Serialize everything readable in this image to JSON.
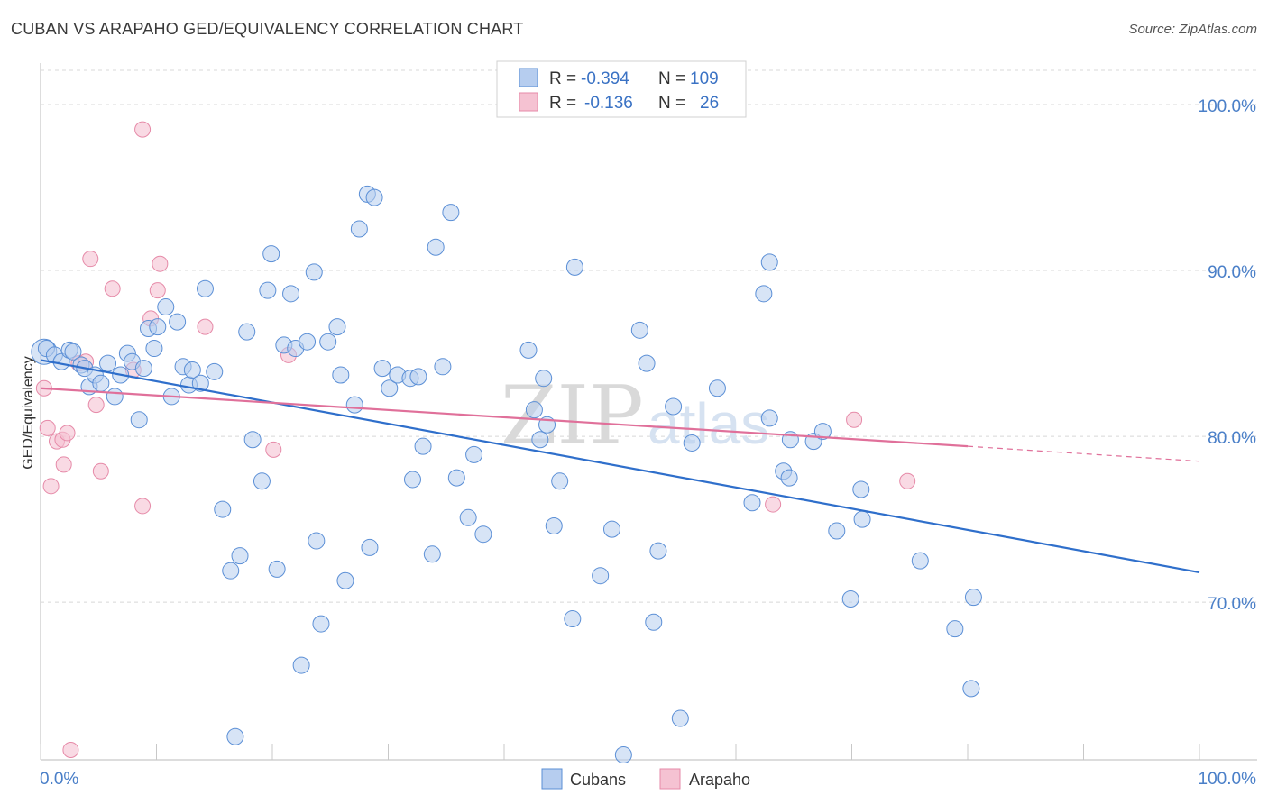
{
  "title": "CUBAN VS ARAPAHO GED/EQUIVALENCY CORRELATION CHART",
  "source": "Source: ZipAtlas.com",
  "watermark": {
    "main": "ZIP",
    "sub": "atlas"
  },
  "colors": {
    "cubans": "#5b8fd6",
    "cubans_fill": "#b6cdef",
    "cubans_line": "#2f6fcb",
    "arapaho": "#e68aa8",
    "arapaho_fill": "#f5c2d2",
    "arapaho_line": "#e0709a",
    "grid": "#d8d8d8",
    "tick_text": "#4a7fc8"
  },
  "legend": {
    "rows": [
      {
        "r_label": "R =",
        "r_value": "-0.394",
        "n_label": "N =",
        "n_value": "109"
      },
      {
        "r_label": "R =",
        "r_value": "-0.136",
        "n_label": "N =",
        "n_value": "26"
      }
    ]
  },
  "chart_data": {
    "type": "scatter",
    "title": "CUBAN VS ARAPAHO GED/EQUIVALENCY CORRELATION CHART",
    "xlabel": "",
    "ylabel": "GED/Equivalency",
    "xlim": [
      0,
      100
    ],
    "ylim": [
      60.5,
      102.5
    ],
    "x_tick_labels": [
      "0.0%",
      "100.0%"
    ],
    "y_ticks": [
      70,
      80,
      90,
      100
    ],
    "y_tick_labels": [
      "70.0%",
      "80.0%",
      "90.0%",
      "100.0%"
    ],
    "grid": true,
    "legend_position": "top-center",
    "series": [
      {
        "name": "Cubans",
        "trend": {
          "x": [
            0,
            100
          ],
          "y": [
            84.6,
            71.8
          ]
        },
        "points": [
          [
            0.3,
            85.1
          ],
          [
            0.5,
            85.3
          ],
          [
            1.2,
            84.9
          ],
          [
            1.8,
            84.5
          ],
          [
            2.5,
            85.2
          ],
          [
            2.8,
            85.1
          ],
          [
            3.5,
            84.3
          ],
          [
            3.8,
            84.1
          ],
          [
            4.2,
            83
          ],
          [
            4.7,
            83.7
          ],
          [
            5.2,
            83.2
          ],
          [
            5.8,
            84.4
          ],
          [
            6.4,
            82.4
          ],
          [
            6.9,
            83.7
          ],
          [
            7.5,
            85
          ],
          [
            7.9,
            84.5
          ],
          [
            8.5,
            81
          ],
          [
            8.9,
            84.1
          ],
          [
            9.3,
            86.5
          ],
          [
            9.8,
            85.3
          ],
          [
            10.1,
            86.6
          ],
          [
            10.8,
            87.8
          ],
          [
            11.3,
            82.4
          ],
          [
            11.8,
            86.9
          ],
          [
            12.3,
            84.2
          ],
          [
            12.8,
            83.1
          ],
          [
            13.1,
            84
          ],
          [
            13.8,
            83.2
          ],
          [
            14.2,
            88.9
          ],
          [
            15.0,
            83.9
          ],
          [
            15.7,
            75.6
          ],
          [
            16.4,
            71.9
          ],
          [
            16.8,
            61.9
          ],
          [
            17.2,
            72.8
          ],
          [
            17.8,
            86.3
          ],
          [
            18.3,
            79.8
          ],
          [
            19.1,
            77.3
          ],
          [
            19.6,
            88.8
          ],
          [
            19.9,
            91
          ],
          [
            20.4,
            72
          ],
          [
            21.0,
            85.5
          ],
          [
            21.6,
            88.6
          ],
          [
            22.0,
            85.3
          ],
          [
            22.5,
            66.2
          ],
          [
            23.0,
            85.7
          ],
          [
            23.6,
            89.9
          ],
          [
            23.8,
            73.7
          ],
          [
            24.2,
            68.7
          ],
          [
            24.8,
            85.7
          ],
          [
            25.6,
            86.6
          ],
          [
            25.9,
            83.7
          ],
          [
            26.3,
            71.3
          ],
          [
            27.1,
            81.9
          ],
          [
            27.5,
            92.5
          ],
          [
            28.2,
            94.6
          ],
          [
            28.4,
            73.3
          ],
          [
            28.8,
            94.4
          ],
          [
            29.5,
            84.1
          ],
          [
            30.1,
            82.9
          ],
          [
            30.8,
            83.7
          ],
          [
            31.9,
            83.5
          ],
          [
            32.1,
            77.4
          ],
          [
            32.6,
            83.6
          ],
          [
            33.0,
            79.4
          ],
          [
            33.8,
            72.9
          ],
          [
            34.1,
            91.4
          ],
          [
            34.7,
            84.2
          ],
          [
            35.4,
            93.5
          ],
          [
            35.9,
            77.5
          ],
          [
            36.9,
            75.1
          ],
          [
            37.4,
            78.9
          ],
          [
            38.2,
            74.1
          ],
          [
            42.1,
            85.2
          ],
          [
            42.6,
            81.6
          ],
          [
            43.1,
            79.8
          ],
          [
            43.4,
            83.5
          ],
          [
            43.7,
            80.7
          ],
          [
            44.3,
            74.6
          ],
          [
            44.8,
            77.3
          ],
          [
            45.9,
            69
          ],
          [
            46.1,
            90.2
          ],
          [
            48.3,
            71.6
          ],
          [
            49.3,
            74.4
          ],
          [
            51.7,
            86.4
          ],
          [
            52.3,
            84.4
          ],
          [
            52.9,
            68.8
          ],
          [
            53.3,
            73.1
          ],
          [
            54.6,
            81.8
          ],
          [
            55.2,
            63
          ],
          [
            56.2,
            79.6
          ],
          [
            58.4,
            82.9
          ],
          [
            61.4,
            76
          ],
          [
            62.4,
            88.6
          ],
          [
            62.9,
            81.1
          ],
          [
            62.9,
            90.5
          ],
          [
            64.7,
            79.8
          ],
          [
            64.1,
            77.9
          ],
          [
            64.6,
            77.5
          ],
          [
            66.7,
            79.7
          ],
          [
            67.5,
            80.3
          ],
          [
            68.7,
            74.3
          ],
          [
            69.9,
            70.2
          ],
          [
            70.8,
            76.8
          ],
          [
            70.9,
            75
          ],
          [
            75.9,
            72.5
          ],
          [
            78.9,
            68.4
          ],
          [
            80.3,
            64.8
          ],
          [
            80.5,
            70.3
          ],
          [
            50.3,
            60.8
          ]
        ]
      },
      {
        "name": "Arapaho",
        "trend": {
          "x": [
            0,
            80
          ],
          "y": [
            82.9,
            79.4
          ]
        },
        "trend_extension": {
          "x": [
            80,
            100
          ],
          "y": [
            79.4,
            78.5
          ]
        },
        "points": [
          [
            0.3,
            82.9
          ],
          [
            0.6,
            80.5
          ],
          [
            0.9,
            77
          ],
          [
            1.4,
            79.7
          ],
          [
            1.9,
            79.8
          ],
          [
            2.0,
            78.3
          ],
          [
            2.3,
            80.2
          ],
          [
            2.6,
            61.1
          ],
          [
            3.3,
            84.4
          ],
          [
            3.9,
            84.5
          ],
          [
            4.3,
            90.7
          ],
          [
            4.8,
            81.9
          ],
          [
            5.2,
            77.9
          ],
          [
            6.2,
            88.9
          ],
          [
            8.0,
            84
          ],
          [
            8.8,
            75.8
          ],
          [
            8.8,
            98.5
          ],
          [
            9.5,
            87.1
          ],
          [
            10.1,
            88.8
          ],
          [
            10.3,
            90.4
          ],
          [
            14.2,
            86.6
          ],
          [
            20.1,
            79.2
          ],
          [
            21.4,
            84.9
          ],
          [
            63.2,
            75.9
          ],
          [
            70.2,
            81
          ],
          [
            74.8,
            77.3
          ]
        ]
      }
    ]
  }
}
